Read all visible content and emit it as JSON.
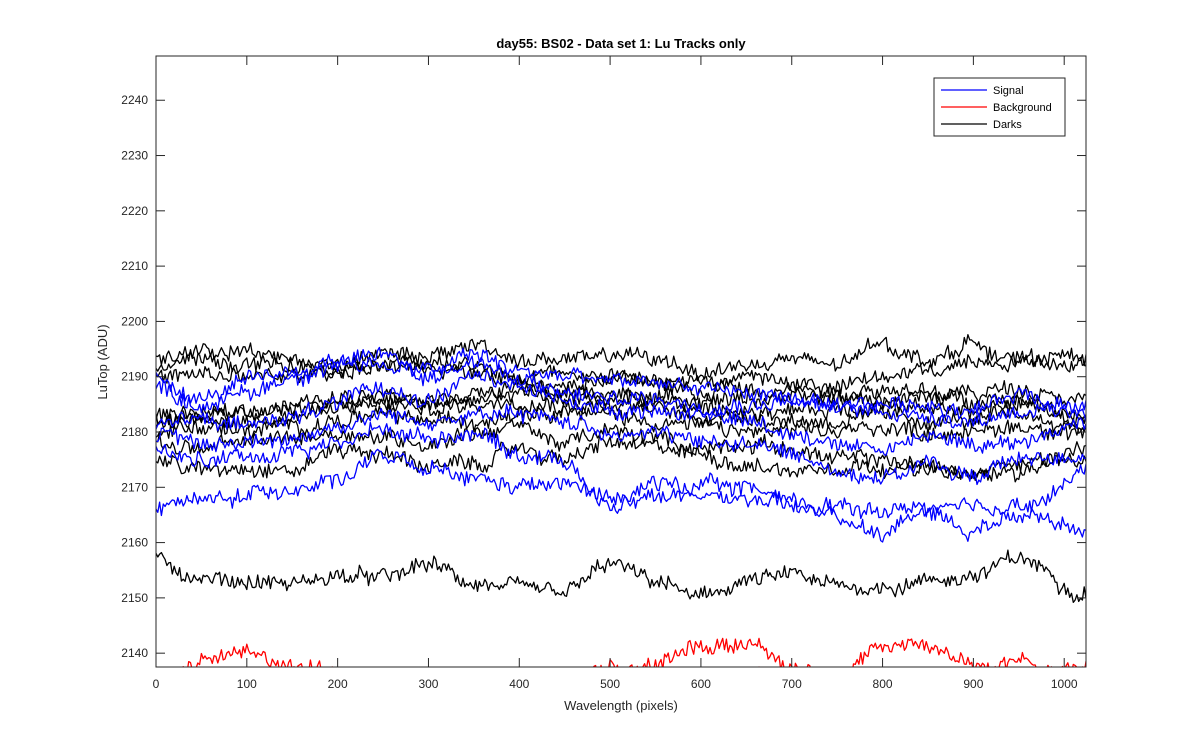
{
  "chart_data": {
    "type": "line",
    "title": "day55: BS02 - Data set 1: Lu Tracks only",
    "xlabel": "Wavelength (pixels)",
    "ylabel": "LuTop (ADU)",
    "xlim": [
      0,
      1024
    ],
    "ylim": [
      2137.5,
      2248
    ],
    "x_ticks": [
      0,
      100,
      200,
      300,
      400,
      500,
      600,
      700,
      800,
      900,
      1000
    ],
    "y_ticks": [
      2140,
      2150,
      2160,
      2170,
      2180,
      2190,
      2200,
      2210,
      2220,
      2230,
      2240
    ],
    "grid": false,
    "legend_position": "top-right",
    "legend": [
      {
        "label": "Signal",
        "color": "#0000ff"
      },
      {
        "label": "Background",
        "color": "#ff0000"
      },
      {
        "label": "Darks",
        "color": "#000000"
      }
    ],
    "x_knots": [
      0,
      50,
      100,
      150,
      200,
      250,
      300,
      350,
      400,
      450,
      500,
      550,
      600,
      650,
      700,
      750,
      800,
      850,
      900,
      950,
      1024
    ],
    "noise_amplitude": 1.2,
    "series": [
      {
        "group": "Signal",
        "color": "#0000ff",
        "y": [
          2167,
          2167.5,
          2168.5,
          2170,
          2171.5,
          2175.5,
          2173,
          2171.5,
          2170,
          2170.5,
          2168,
          2168.5,
          2168,
          2168,
          2166,
          2166.5,
          2165.5,
          2166.5,
          2166,
          2165.5,
          2162
        ]
      },
      {
        "group": "Signal",
        "color": "#0000ff",
        "y": [
          2176,
          2175,
          2175.5,
          2176.5,
          2178,
          2180.5,
          2179,
          2180,
          2176,
          2175,
          2166,
          2171,
          2170,
          2170,
          2168,
          2164.5,
          2162,
          2166,
          2162,
          2167,
          2173
        ]
      },
      {
        "group": "Signal",
        "color": "#0000ff",
        "y": [
          2179,
          2178,
          2178,
          2179,
          2181,
          2183,
          2182,
          2183,
          2183,
          2182,
          2180,
          2180,
          2178,
          2178,
          2176,
          2173,
          2172,
          2174,
          2172,
          2175,
          2176
        ]
      },
      {
        "group": "Signal",
        "color": "#0000ff",
        "y": [
          2182,
          2182,
          2181,
          2183,
          2185,
          2188,
          2186,
          2190,
          2188,
          2186,
          2184,
          2184,
          2183,
          2182,
          2180,
          2178,
          2177,
          2179,
          2178,
          2178,
          2182
        ]
      },
      {
        "group": "Signal",
        "color": "#0000ff",
        "y": [
          2188,
          2185,
          2187,
          2190,
          2192,
          2194,
          2190,
          2193,
          2189,
          2187,
          2186,
          2186,
          2185,
          2185,
          2186,
          2184,
          2184,
          2183,
          2182,
          2184,
          2184
        ]
      },
      {
        "group": "Signal",
        "color": "#0000ff",
        "y": [
          2190,
          2186,
          2189,
          2191,
          2193,
          2192,
          2191,
          2194,
          2191,
          2190,
          2189,
          2189,
          2188,
          2187,
          2186,
          2184,
          2185,
          2185,
          2184,
          2187,
          2183
        ]
      },
      {
        "group": "Darks",
        "color": "#000000",
        "y": [
          2157,
          2153.5,
          2153,
          2152.5,
          2154,
          2153.5,
          2156,
          2152.5,
          2151.5,
          2151,
          2156,
          2153,
          2150,
          2153,
          2154,
          2152,
          2152,
          2153,
          2154,
          2157,
          2151
        ]
      },
      {
        "group": "Darks",
        "color": "#000000",
        "y": [
          2175,
          2173,
          2174,
          2173,
          2177,
          2176,
          2174,
          2174,
          2177,
          2175,
          2178,
          2177,
          2176,
          2174,
          2173,
          2174,
          2174,
          2173,
          2172,
          2175,
          2175
        ]
      },
      {
        "group": "Darks",
        "color": "#000000",
        "y": [
          2178,
          2177,
          2178,
          2179,
          2180,
          2179,
          2178,
          2180,
          2181,
          2178,
          2180,
          2179,
          2177,
          2178,
          2177,
          2175,
          2175,
          2174,
          2172,
          2173,
          2177
        ]
      },
      {
        "group": "Darks",
        "color": "#000000",
        "y": [
          2180,
          2181,
          2180,
          2181,
          2182,
          2183,
          2182,
          2182,
          2184,
          2184,
          2183,
          2182,
          2181,
          2180,
          2180,
          2180,
          2181,
          2180,
          2180,
          2181,
          2180
        ]
      },
      {
        "group": "Darks",
        "color": "#000000",
        "y": [
          2181,
          2182,
          2182,
          2183,
          2184,
          2185,
          2184,
          2185,
          2186,
          2185,
          2185,
          2184,
          2183,
          2183,
          2182,
          2182,
          2183,
          2182,
          2182,
          2183,
          2181
        ]
      },
      {
        "group": "Darks",
        "color": "#000000",
        "y": [
          2182,
          2183,
          2183,
          2184,
          2185,
          2186,
          2185,
          2186,
          2187,
          2186,
          2186,
          2185,
          2184,
          2184,
          2184,
          2184,
          2185,
          2184,
          2184,
          2185,
          2183
        ]
      },
      {
        "group": "Darks",
        "color": "#000000",
        "y": [
          2183,
          2183,
          2184,
          2185,
          2186,
          2187,
          2186,
          2187,
          2188,
          2187,
          2187,
          2186,
          2186,
          2186,
          2186,
          2186,
          2186,
          2186,
          2186,
          2186,
          2182
        ]
      },
      {
        "group": "Darks",
        "color": "#000000",
        "y": [
          2190,
          2190,
          2190,
          2190,
          2191,
          2192,
          2192,
          2191,
          2190,
          2191,
          2190,
          2189,
          2189,
          2188,
          2188,
          2187,
          2188,
          2187,
          2187,
          2188,
          2186
        ]
      },
      {
        "group": "Darks",
        "color": "#000000",
        "y": [
          2192,
          2193,
          2192,
          2192,
          2191,
          2192,
          2191,
          2193,
          2190,
          2188,
          2190,
          2189,
          2187,
          2190,
          2189,
          2188,
          2190,
          2191,
          2193,
          2193,
          2194
        ]
      },
      {
        "group": "Darks",
        "color": "#000000",
        "y": [
          2193,
          2195,
          2195,
          2193,
          2192,
          2195,
          2193,
          2196,
          2193,
          2193,
          2194,
          2193,
          2191,
          2192,
          2193,
          2192,
          2196,
          2193,
          2196,
          2193,
          2192
        ]
      },
      {
        "group": "Background",
        "color": "#ff0000",
        "y": [
          2134,
          2134,
          2135,
          2134,
          2133,
          2133,
          2133,
          2133,
          2133,
          2134,
          2136,
          2135,
          2134,
          2136,
          2134,
          2134,
          2136,
          2136,
          2134,
          2134,
          2133
        ]
      },
      {
        "group": "Background",
        "color": "#ff0000",
        "y": [
          2136,
          2138.5,
          2140,
          2138,
          2136,
          2134,
          2133,
          2134,
          2135,
          2135,
          2137.5,
          2138,
          2141,
          2142,
          2137,
          2136,
          2141,
          2141.5,
          2138,
          2138.5,
          2137
        ]
      }
    ]
  }
}
